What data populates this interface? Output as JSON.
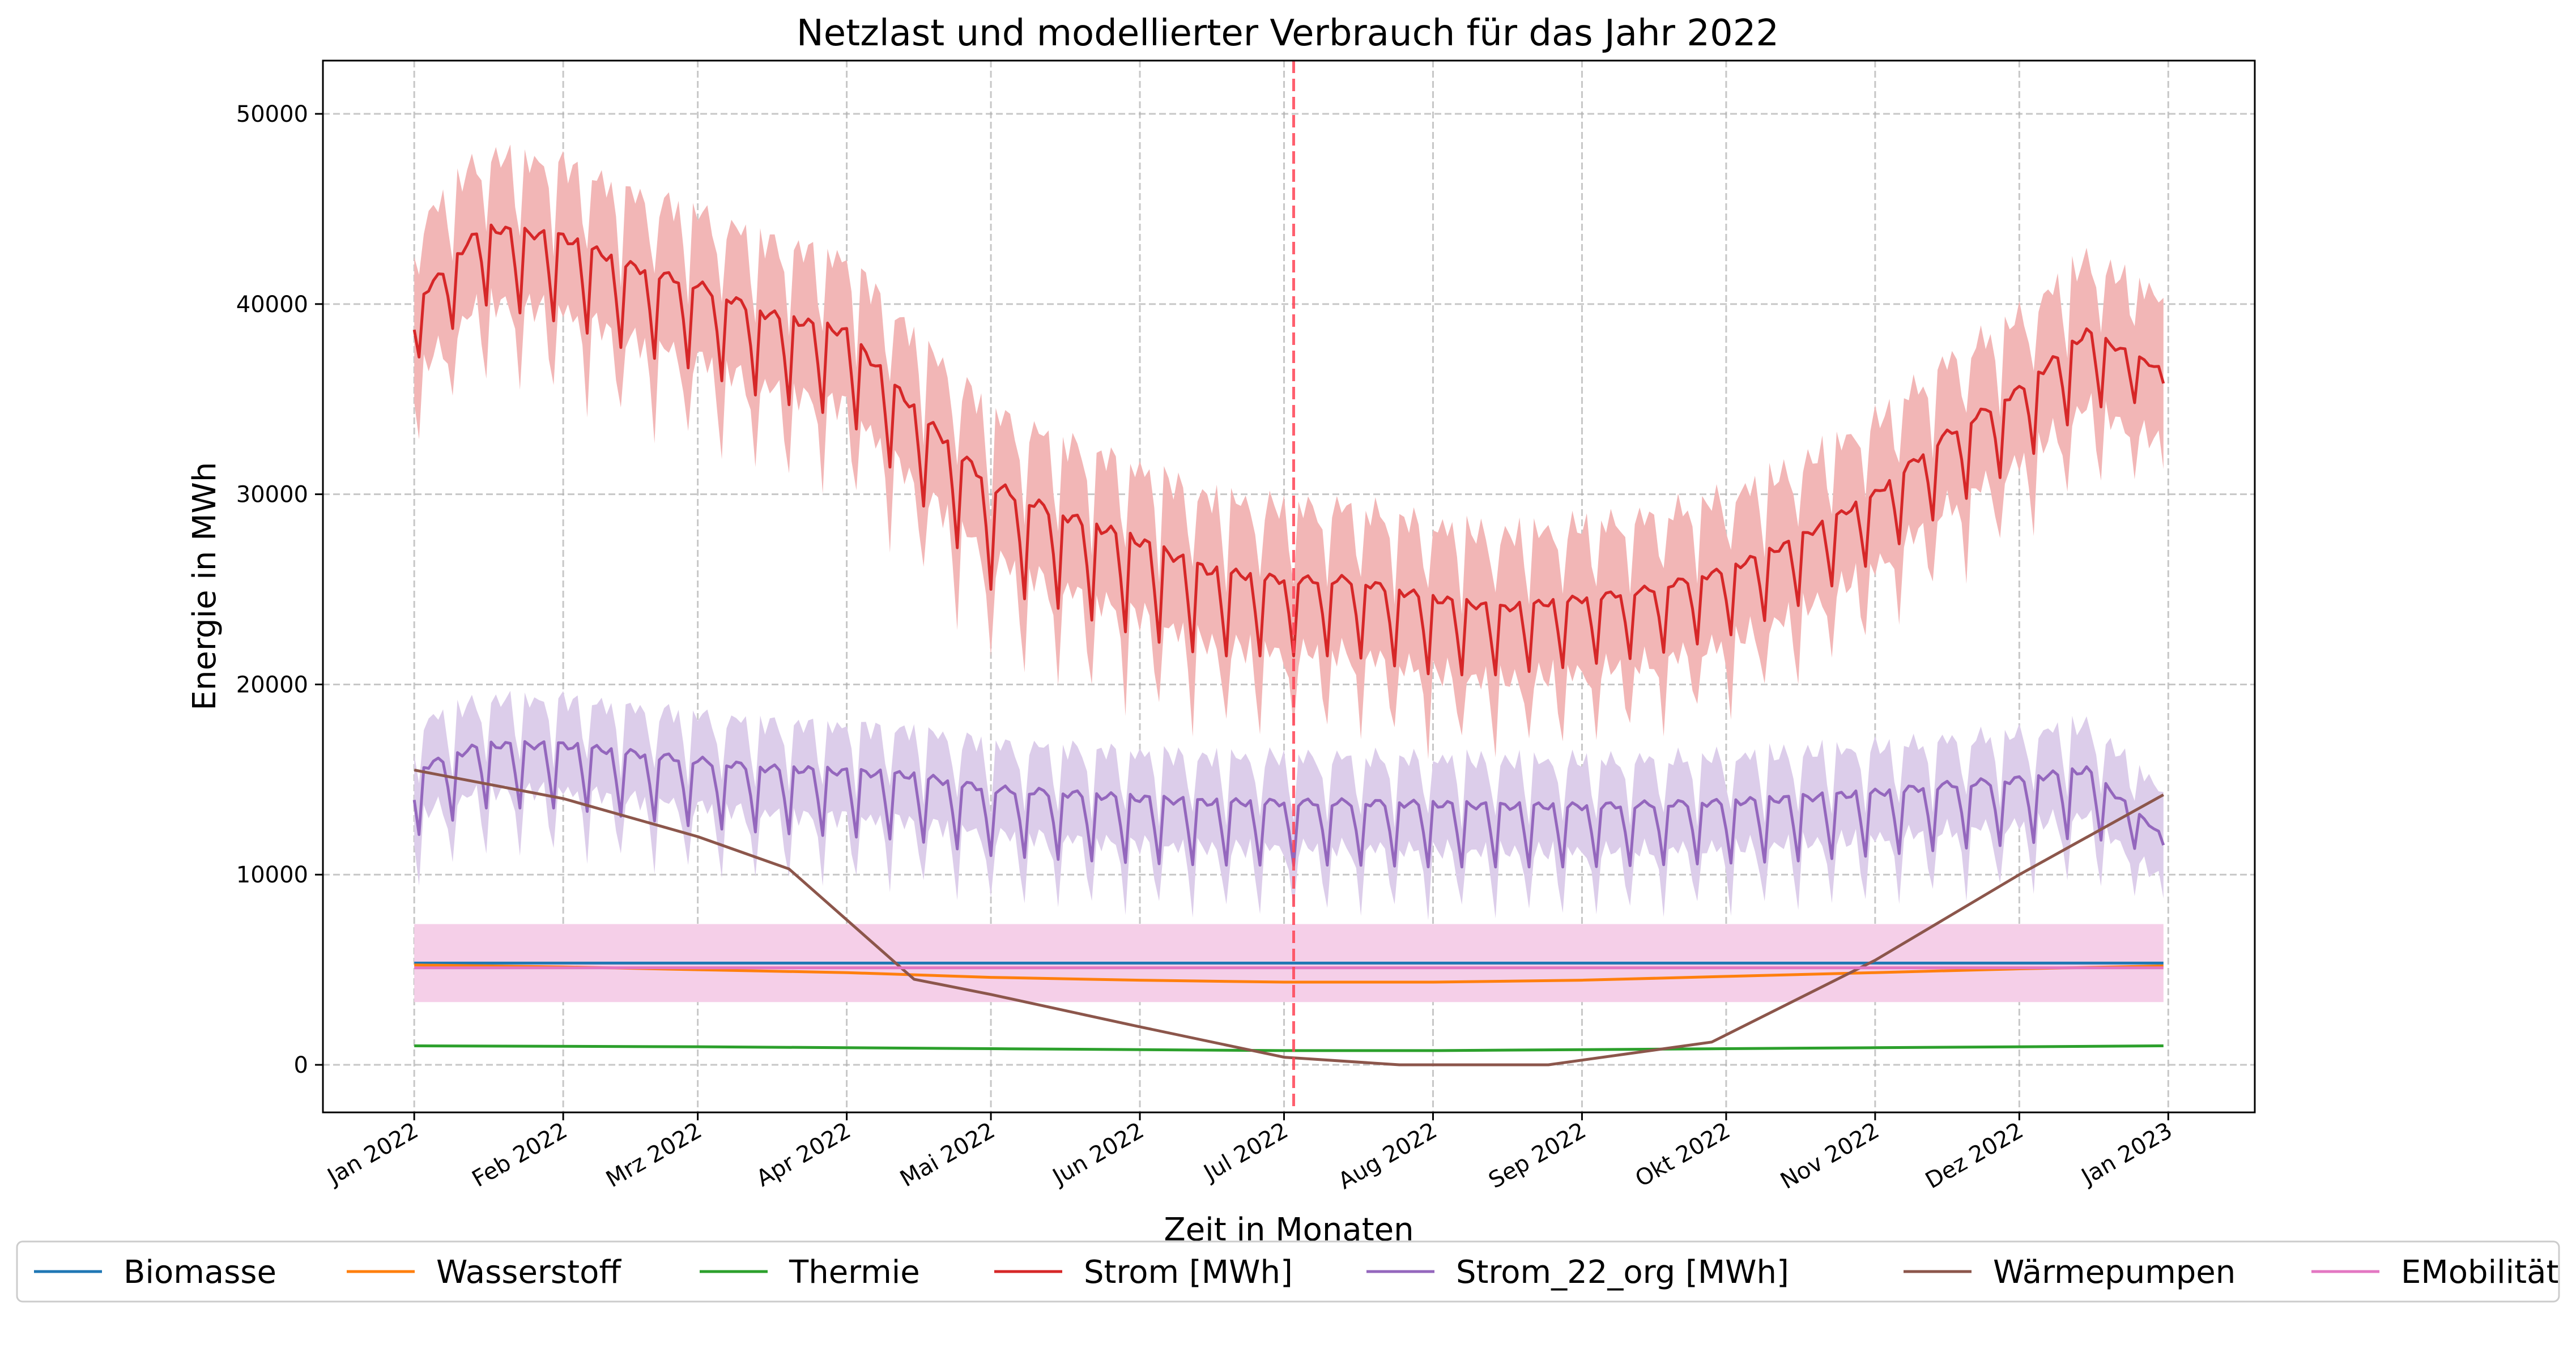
{
  "chart_data": {
    "type": "line",
    "title": "Netzlast und modellierter Verbrauch für das Jahr 2022",
    "xlabel": "Zeit in Monaten",
    "ylabel": "Energie in MWh",
    "xlim": [
      "2021-12-13",
      "2023-01-19"
    ],
    "ylim": [
      -2500,
      52800
    ],
    "yticks": [
      0,
      10000,
      20000,
      30000,
      40000,
      50000
    ],
    "xticks": [
      {
        "date": "2022-01-01",
        "label": "Jan 2022"
      },
      {
        "date": "2022-02-01",
        "label": "Feb 2022"
      },
      {
        "date": "2022-03-01",
        "label": "Mrz 2022"
      },
      {
        "date": "2022-04-01",
        "label": "Apr 2022"
      },
      {
        "date": "2022-05-01",
        "label": "Mai 2022"
      },
      {
        "date": "2022-06-01",
        "label": "Jun 2022"
      },
      {
        "date": "2022-07-01",
        "label": "Jul 2022"
      },
      {
        "date": "2022-08-01",
        "label": "Aug 2022"
      },
      {
        "date": "2022-09-01",
        "label": "Sep 2022"
      },
      {
        "date": "2022-10-01",
        "label": "Okt 2022"
      },
      {
        "date": "2022-11-01",
        "label": "Nov 2022"
      },
      {
        "date": "2022-12-01",
        "label": "Dez 2022"
      },
      {
        "date": "2023-01-01",
        "label": "Jan 2023"
      }
    ],
    "grid": true,
    "legend_position": "bottom",
    "vline": {
      "date": "2022-07-03",
      "color": "#ff4455",
      "style": "dashed"
    },
    "series": [
      {
        "name": "Biomasse",
        "color": "#1f77b4",
        "x": [
          "2022-01-01",
          "2022-12-31"
        ],
        "y": [
          5350,
          5350
        ]
      },
      {
        "name": "Wasserstoff",
        "color": "#ff7f0e",
        "x": [
          "2022-01-01",
          "2022-02-01",
          "2022-03-01",
          "2022-04-01",
          "2022-05-01",
          "2022-06-01",
          "2022-07-01",
          "2022-08-01",
          "2022-09-01",
          "2022-10-01",
          "2022-11-01",
          "2022-12-01",
          "2022-12-31"
        ],
        "y": [
          5250,
          5150,
          5000,
          4850,
          4600,
          4450,
          4350,
          4350,
          4450,
          4650,
          4850,
          5050,
          5200
        ]
      },
      {
        "name": "Thermie",
        "color": "#2ca02c",
        "x": [
          "2022-01-01",
          "2022-03-01",
          "2022-05-01",
          "2022-07-01",
          "2022-08-01",
          "2022-09-01",
          "2022-11-01",
          "2022-12-31"
        ],
        "y": [
          1000,
          950,
          850,
          750,
          750,
          800,
          900,
          1000
        ]
      },
      {
        "name": "Strom [MWh]",
        "color": "#d62728",
        "monthly_x": [
          "2022-01-01",
          "2022-01-15",
          "2022-02-01",
          "2022-02-15",
          "2022-03-01",
          "2022-03-15",
          "2022-04-01",
          "2022-04-15",
          "2022-05-01",
          "2022-05-15",
          "2022-06-01",
          "2022-06-15",
          "2022-07-01",
          "2022-07-15",
          "2022-08-01",
          "2022-08-15",
          "2022-09-01",
          "2022-09-15",
          "2022-10-01",
          "2022-10-15",
          "2022-11-01",
          "2022-11-15",
          "2022-12-01",
          "2022-12-15",
          "2022-12-31"
        ],
        "weekday_level": [
          40000,
          44000,
          43500,
          42000,
          41000,
          39500,
          38500,
          34500,
          30500,
          29000,
          27500,
          26000,
          25500,
          25500,
          24500,
          24000,
          24500,
          25000,
          26000,
          27500,
          30000,
          33000,
          35500,
          38500,
          36500
        ],
        "weekend_level": [
          37000,
          40000,
          39000,
          37500,
          36500,
          35000,
          34000,
          30000,
          25000,
          24000,
          22500,
          21500,
          21500,
          21500,
          20500,
          20500,
          21000,
          21500,
          22500,
          24000,
          26500,
          29000,
          31500,
          34500,
          35000
        ],
        "band_halfwidth": 4500,
        "band_color": "#f2b6b6"
      },
      {
        "name": "Strom_22_org [MWh]",
        "color": "#9467bd",
        "monthly_x": [
          "2022-01-01",
          "2022-01-15",
          "2022-02-01",
          "2022-02-15",
          "2022-03-01",
          "2022-03-15",
          "2022-04-01",
          "2022-04-15",
          "2022-05-01",
          "2022-05-15",
          "2022-06-01",
          "2022-06-15",
          "2022-07-01",
          "2022-07-15",
          "2022-08-01",
          "2022-08-15",
          "2022-09-01",
          "2022-09-15",
          "2022-10-01",
          "2022-10-15",
          "2022-11-01",
          "2022-11-15",
          "2022-12-01",
          "2022-12-15",
          "2022-12-31"
        ],
        "weekday_level": [
          15500,
          16800,
          16800,
          16400,
          16000,
          15600,
          15400,
          15200,
          14500,
          14300,
          14000,
          13800,
          13800,
          13800,
          13700,
          13600,
          13600,
          13700,
          13800,
          14000,
          14300,
          14700,
          15000,
          15500,
          12000
        ],
        "weekend_level": [
          12000,
          13500,
          13500,
          13000,
          12500,
          12200,
          12000,
          11800,
          11000,
          10800,
          10600,
          10500,
          10500,
          10500,
          10400,
          10400,
          10400,
          10500,
          10600,
          10700,
          11000,
          11300,
          11600,
          12000,
          11000
        ],
        "band_halfwidth": 2800,
        "band_color": "#dccdea"
      },
      {
        "name": "Wärmepumpen",
        "color": "#8c564b",
        "x": [
          "2022-01-01",
          "2022-02-01",
          "2022-03-01",
          "2022-03-20",
          "2022-04-15",
          "2022-05-01",
          "2022-06-01",
          "2022-07-01",
          "2022-07-25",
          "2022-08-25",
          "2022-09-28",
          "2022-11-01",
          "2022-12-01",
          "2022-12-31"
        ],
        "y": [
          15500,
          14000,
          12000,
          10300,
          4500,
          3700,
          2000,
          400,
          0,
          0,
          1200,
          5500,
          10000,
          14200
        ]
      },
      {
        "name": "EMobilität",
        "color": "#e377c2",
        "x": [
          "2022-01-01",
          "2022-12-31"
        ],
        "y": [
          5100,
          5100
        ],
        "band_low": 3300,
        "band_high": 7400,
        "band_color": "#f5cfe8"
      }
    ]
  }
}
